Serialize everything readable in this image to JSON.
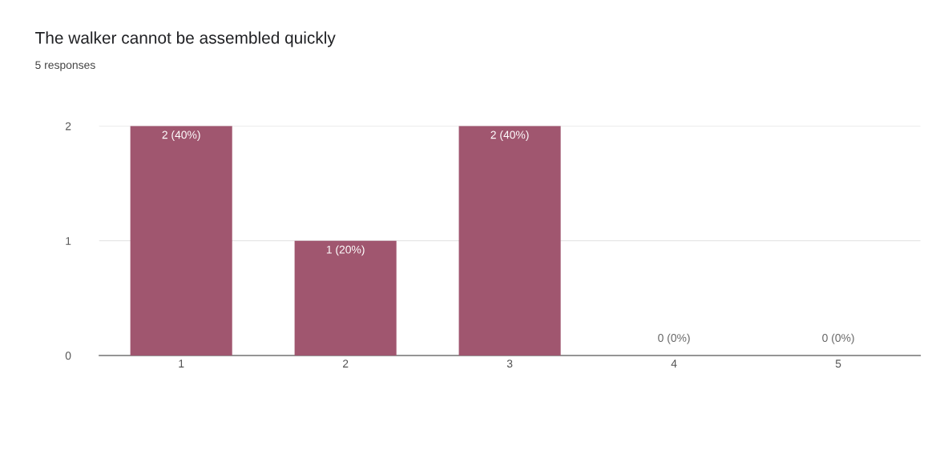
{
  "chart_data": {
    "type": "bar",
    "title": "The walker cannot be assembled quickly",
    "subtitle": "5 responses",
    "categories": [
      "1",
      "2",
      "3",
      "4",
      "5"
    ],
    "values": [
      2,
      1,
      2,
      0,
      0
    ],
    "value_labels": [
      "2 (40%)",
      "1 (20%)",
      "2 (40%)",
      "0 (0%)",
      "0 (0%)"
    ],
    "color": "#a0566f",
    "ylim": [
      0,
      2
    ],
    "yticks": [
      0,
      1,
      2
    ],
    "grid": "y",
    "legend": false
  }
}
